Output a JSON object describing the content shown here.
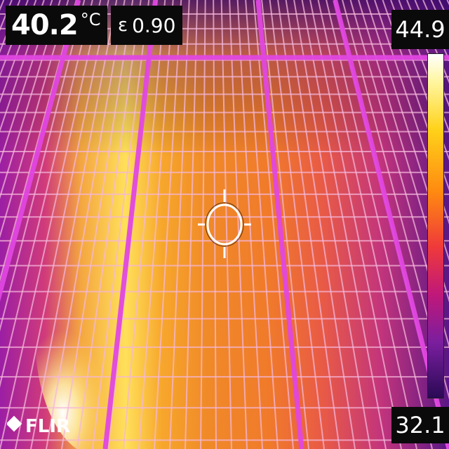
{
  "readout": {
    "temperature": "40.2",
    "unit": "°C",
    "emissivity_symbol": "ε",
    "emissivity": "0.90"
  },
  "scale": {
    "max": "44.9",
    "min": "32.1"
  },
  "logo": {
    "text": "FLIR"
  },
  "colors": {
    "palette": [
      "#ffffff",
      "#fff6a0",
      "#ffd21a",
      "#ff8a10",
      "#ef3a3a",
      "#c0187a",
      "#7a1e9e",
      "#2a0a55"
    ],
    "frame_grid": "#d93ad8",
    "cell_grid": "#f2b0d8"
  }
}
